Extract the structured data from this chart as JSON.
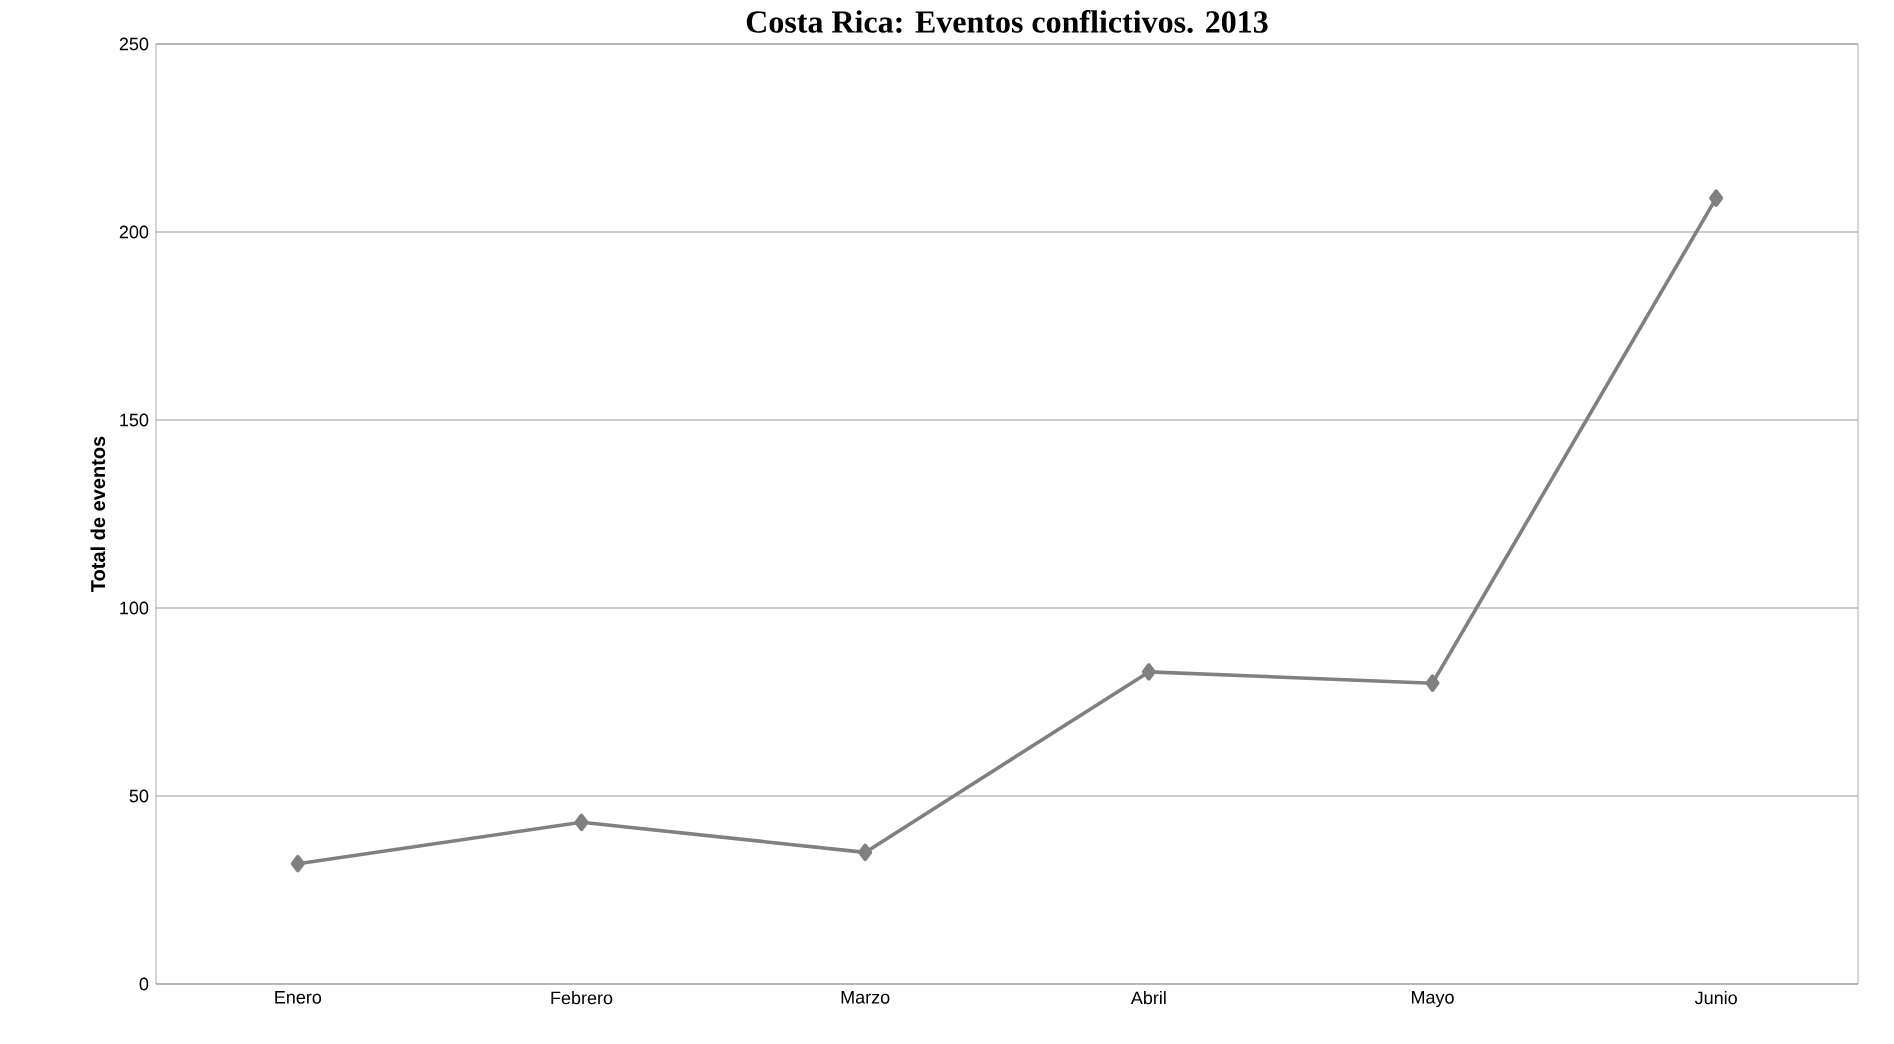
{
  "chart_data": {
    "type": "line",
    "title": "Costa Rica: Eventos conflictivos. 2013",
    "ylabel": "Total de eventos",
    "categories": [
      "Enero",
      "Febrero",
      "Marzo",
      "Abril",
      "Mayo",
      "Junio"
    ],
    "series": [
      {
        "color": "#808080",
        "values": [
          32,
          43,
          35,
          83,
          80,
          209
        ]
      }
    ],
    "ylim": [
      0,
      250
    ],
    "yticks": [
      0,
      50,
      100,
      150,
      200,
      250
    ],
    "grid": "y",
    "marker": "diamond",
    "line_style": "solid"
  }
}
